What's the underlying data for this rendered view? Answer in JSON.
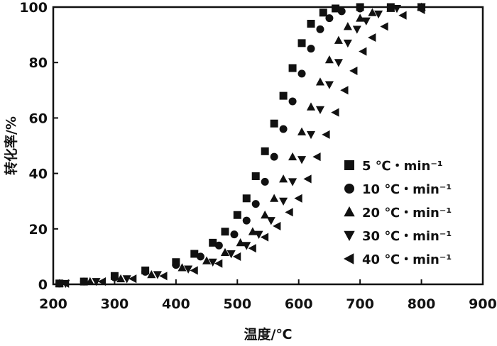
{
  "chart_data": {
    "type": "scatter",
    "xlabel": "温度/℃",
    "ylabel": "转化率/%",
    "xlim": [
      200,
      900
    ],
    "ylim": [
      0,
      100
    ],
    "x_ticks": [
      "200",
      "300",
      "400",
      "500",
      "600",
      "700",
      "800",
      "900"
    ],
    "y_ticks": [
      "0",
      "20",
      "40",
      "60",
      "80",
      "100"
    ],
    "legend_position": "right",
    "series": [
      {
        "name": "5 ℃・min⁻¹",
        "marker": "square",
        "x": [
          210,
          250,
          300,
          350,
          400,
          430,
          460,
          480,
          500,
          515,
          530,
          545,
          560,
          575,
          590,
          605,
          620,
          640,
          660,
          700,
          750,
          800
        ],
        "y": [
          0.3,
          1,
          3,
          5,
          8,
          11,
          15,
          19,
          25,
          31,
          39,
          48,
          58,
          68,
          78,
          87,
          94,
          98,
          99.5,
          100,
          100,
          100
        ]
      },
      {
        "name": "10 ℃・min⁻¹",
        "marker": "circle",
        "x": [
          210,
          250,
          300,
          350,
          400,
          440,
          470,
          495,
          515,
          530,
          545,
          560,
          575,
          590,
          605,
          620,
          635,
          650,
          670,
          700,
          750,
          800
        ],
        "y": [
          0.3,
          1,
          2.5,
          4.5,
          7,
          10,
          14,
          18,
          23,
          29,
          37,
          46,
          56,
          66,
          76,
          85,
          92,
          96,
          98.5,
          99.5,
          100,
          100
        ]
      },
      {
        "name": "20 ℃・min⁻¹",
        "marker": "triangle-up",
        "x": [
          210,
          260,
          310,
          360,
          410,
          450,
          480,
          505,
          525,
          545,
          560,
          575,
          590,
          605,
          620,
          635,
          650,
          665,
          680,
          700,
          720,
          750,
          800
        ],
        "y": [
          0.3,
          1,
          2,
          3.5,
          6,
          8.5,
          11.5,
          15,
          19,
          25,
          31,
          38,
          46,
          55,
          64,
          73,
          81,
          88,
          93,
          96,
          98,
          99.5,
          100
        ]
      },
      {
        "name": "30 ℃・min⁻¹",
        "marker": "triangle-down",
        "x": [
          220,
          270,
          320,
          370,
          420,
          460,
          490,
          515,
          535,
          555,
          575,
          590,
          605,
          620,
          635,
          650,
          665,
          680,
          695,
          710,
          730,
          760,
          800
        ],
        "y": [
          0.3,
          1,
          2,
          3.5,
          5.5,
          8,
          11,
          14,
          18,
          23,
          30,
          37,
          45,
          54,
          63,
          72,
          80,
          87,
          92,
          95,
          97.5,
          99.5,
          100
        ]
      },
      {
        "name": "40 ℃・min⁻¹",
        "marker": "triangle-left",
        "x": [
          220,
          280,
          330,
          380,
          430,
          470,
          500,
          525,
          545,
          565,
          585,
          600,
          615,
          630,
          645,
          660,
          675,
          690,
          705,
          720,
          740,
          770,
          800
        ],
        "y": [
          0.3,
          1,
          2,
          3,
          5,
          7.5,
          10,
          13,
          17,
          21,
          26,
          31,
          38,
          46,
          54,
          62,
          70,
          77,
          84,
          89,
          93,
          97,
          99
        ]
      }
    ]
  }
}
